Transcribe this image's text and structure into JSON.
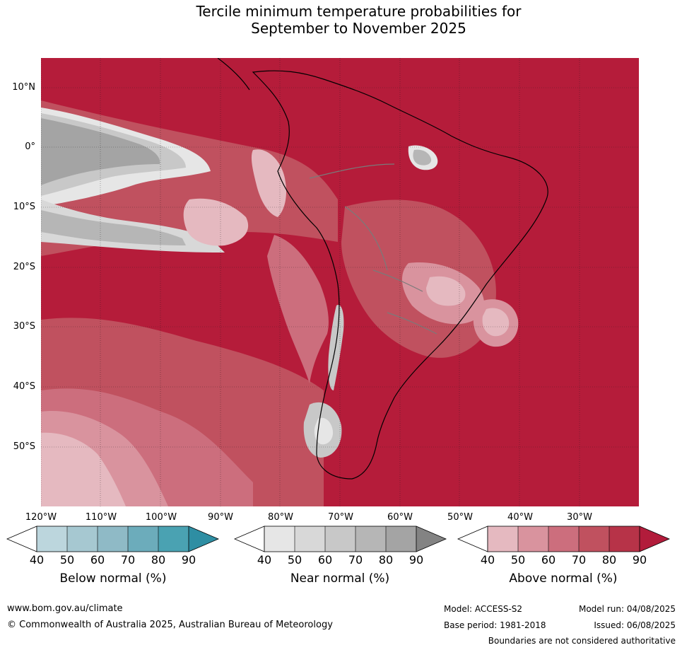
{
  "title_line1": "Tercile minimum temperature probabilities for",
  "title_line2": "September to November 2025",
  "latitudes": [
    "10°N",
    "0°",
    "10°S",
    "20°S",
    "30°S",
    "40°S",
    "50°S"
  ],
  "longitudes": [
    "120°W",
    "110°W",
    "100°W",
    "90°W",
    "80°W",
    "70°W",
    "60°W",
    "50°W",
    "40°W",
    "30°W"
  ],
  "colorbars": [
    {
      "title": "Below normal (%)",
      "ticks": [
        "40",
        "50",
        "60",
        "70",
        "80",
        "90"
      ],
      "colors": [
        "#bcd6dd",
        "#a6c8d1",
        "#8fbac6",
        "#6cacbb",
        "#4aa2b2",
        "#2e8ea3"
      ]
    },
    {
      "title": "Near normal (%)",
      "ticks": [
        "40",
        "50",
        "60",
        "70",
        "80",
        "90"
      ],
      "colors": [
        "#e6e6e6",
        "#d8d8d8",
        "#c8c8c8",
        "#b6b6b6",
        "#a4a4a4",
        "#838383"
      ]
    },
    {
      "title": "Above normal (%)",
      "ticks": [
        "40",
        "50",
        "60",
        "70",
        "80",
        "90"
      ],
      "colors": [
        "#e5b9c0",
        "#d9939e",
        "#cc6e7d",
        "#c0515f",
        "#b73348",
        "#b21c3b"
      ]
    }
  ],
  "footer": {
    "website": "www.bom.gov.au/climate",
    "copyright": "© Commonwealth of Australia 2025, Australian Bureau of Meteorology",
    "model": "Model: ACCESS-S2",
    "model_run": "Model run: 04/08/2025",
    "base_period": "Base period: 1981-2018",
    "issued": "Issued: 06/08/2025",
    "disclaimer": "Boundaries are not considered authoritative"
  }
}
